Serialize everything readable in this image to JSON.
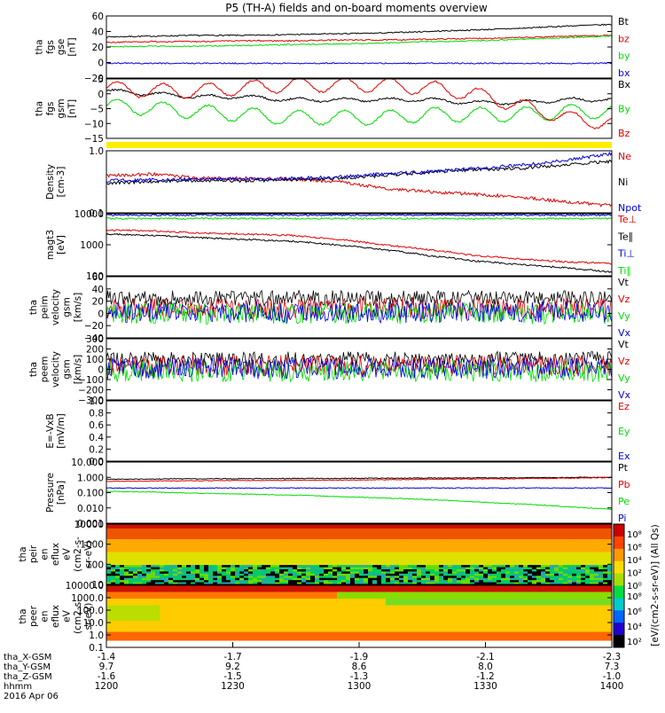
{
  "colors": {
    "black": "#000000",
    "red": "#e00000",
    "green": "#00dd00",
    "blue": "#0000e0",
    "yellow": "#ffee00"
  },
  "chart_data": {
    "type": "line",
    "title": "P5 (TH-A) fields and on-board moments overview",
    "xaxis": {
      "rows": [
        {
          "label": "tha_X-GSM",
          "ticks": [
            "-1.4",
            "-1.7",
            "-1.9",
            "-2.1",
            "-2.3"
          ]
        },
        {
          "label": "tha_Y-GSM",
          "ticks": [
            "9.7",
            "9.2",
            "8.6",
            "8.0",
            "7.3"
          ]
        },
        {
          "label": "tha_Z-GSM",
          "ticks": [
            "-1.6",
            "-1.5",
            "-1.3",
            "-1.2",
            "-1.0"
          ]
        },
        {
          "label": "hhmm",
          "ticks": [
            "1200",
            "1230",
            "1300",
            "1330",
            "1400"
          ]
        }
      ],
      "date": "2016 Apr 06"
    },
    "colorbar": {
      "label": "[eV/(cm2-s-sr-eV)] (All Qs)",
      "top_ticks": [
        "10⁸",
        "10⁶",
        "10⁴",
        "10²",
        "10⁰"
      ],
      "bottom_ticks": [
        "10⁸",
        "10⁶",
        "10⁴",
        "10²"
      ]
    },
    "panels": [
      {
        "id": "fgs-gse",
        "ylabel": [
          "tha",
          "fgs",
          "gse",
          "[nT]"
        ],
        "ylim": [
          -20,
          60
        ],
        "yticks": [
          "60",
          "40",
          "20",
          "0",
          "−20"
        ],
        "series": [
          {
            "name": "Bt",
            "color": "black",
            "values": [
              33,
              34,
              35,
              35,
              36,
              37,
              38,
              40,
              42,
              44,
              47,
              49
            ]
          },
          {
            "name": "bz",
            "color": "red",
            "values": [
              26,
              27,
              27,
              28,
              28,
              29,
              29,
              30,
              31,
              32,
              34,
              35
            ]
          },
          {
            "name": "by",
            "color": "green",
            "values": [
              20,
              21,
              21,
              22,
              23,
              24,
              25,
              27,
              28,
              30,
              32,
              34
            ]
          },
          {
            "name": "bx",
            "color": "blue",
            "values": [
              -1,
              -1,
              -1,
              -1,
              -1,
              -1,
              -1,
              -1,
              -1,
              -1,
              -1,
              -1
            ]
          }
        ]
      },
      {
        "id": "fgs-gsm",
        "ylabel": [
          "tha",
          "fgs",
          "gsm",
          "[nT]"
        ],
        "ylim": [
          -15,
          5
        ],
        "yticks": [
          "5",
          "0",
          "−5",
          "−10",
          "−15"
        ],
        "series": [
          {
            "name": "Bx",
            "color": "black",
            "values": [
              1,
              0,
              -1,
              -1,
              -2,
              -2,
              -2,
              -2,
              -3,
              -3,
              -2,
              -2
            ]
          },
          {
            "name": "By",
            "color": "green",
            "values": [
              -4,
              -5,
              -6,
              -7,
              -8,
              -8,
              -8,
              -7,
              -7,
              -7,
              -6,
              -6
            ]
          },
          {
            "name": "Bz",
            "color": "red",
            "values": [
              2,
              1,
              1,
              2,
              3,
              3,
              3,
              2,
              0,
              -4,
              -8,
              -10
            ]
          }
        ]
      },
      {
        "id": "density",
        "ylabel": [
          "Density",
          "[cm-3]"
        ],
        "ylim": [
          0.1,
          1.0
        ],
        "yticks": [
          "1.0",
          "0.1"
        ],
        "series": [
          {
            "name": "Ne",
            "color": "red",
            "values": [
              0.4,
              0.42,
              0.36,
              0.36,
              0.35,
              0.32,
              0.25,
              0.22,
              0.2,
              0.18,
              0.15,
              0.13
            ]
          },
          {
            "name": "Ni",
            "color": "black",
            "values": [
              0.3,
              0.32,
              0.33,
              0.33,
              0.34,
              0.36,
              0.4,
              0.45,
              0.5,
              0.52,
              0.6,
              0.68
            ]
          },
          {
            "name": "Npot",
            "color": "blue",
            "values": [
              0.33,
              0.34,
              0.35,
              0.35,
              0.36,
              0.38,
              0.42,
              0.46,
              0.52,
              0.58,
              0.7,
              0.9
            ]
          }
        ]
      },
      {
        "id": "temperature",
        "ylabel": [
          "magt3",
          "[eV]"
        ],
        "ylim": [
          100,
          10000
        ],
        "yticks": [
          "10000",
          "1000",
          "100"
        ],
        "series": [
          {
            "name": "Te⊥",
            "color": "red",
            "values": [
              3000,
              2800,
              2400,
              2200,
              2000,
              1500,
              1000,
              700,
              450,
              350,
              280,
              250
            ]
          },
          {
            "name": "Te∥",
            "color": "black",
            "values": [
              2200,
              2000,
              1700,
              1500,
              1300,
              1000,
              700,
              450,
              300,
              230,
              180,
              130
            ]
          },
          {
            "name": "Ti⊥",
            "color": "blue",
            "values": [
              9000,
              9000,
              9000,
              9000,
              9000,
              9000,
              9000,
              9000,
              9000,
              9000,
              9000,
              9000
            ]
          },
          {
            "name": "Ti∥",
            "color": "green",
            "values": [
              7000,
              7000,
              7000,
              7000,
              7000,
              7000,
              7000,
              7000,
              7000,
              7000,
              7000,
              7000
            ]
          }
        ]
      },
      {
        "id": "peim-velocity",
        "ylabel": [
          "tha",
          "peim",
          "velocity",
          "gsm",
          "[km/s]"
        ],
        "ylim": [
          -40,
          60
        ],
        "yticks": [
          "60",
          "40",
          "20",
          "0",
          "−20",
          "−40"
        ],
        "series": [
          {
            "name": "Vt",
            "color": "black",
            "values": [
              25,
              25,
              25,
              25,
              25,
              25,
              25,
              25,
              25,
              25,
              25,
              25
            ]
          },
          {
            "name": "Vz",
            "color": "red",
            "values": [
              8,
              8,
              8,
              8,
              8,
              8,
              8,
              8,
              8,
              8,
              8,
              8
            ]
          },
          {
            "name": "Vy",
            "color": "green",
            "values": [
              0,
              0,
              0,
              0,
              0,
              0,
              0,
              0,
              0,
              0,
              0,
              0
            ]
          },
          {
            "name": "Vx",
            "color": "blue",
            "values": [
              2,
              2,
              2,
              2,
              2,
              2,
              2,
              2,
              2,
              2,
              2,
              2
            ]
          }
        ]
      },
      {
        "id": "peem-velocity",
        "ylabel": [
          "tha",
          "peem",
          "velocity",
          "gsm",
          "[km/s]"
        ],
        "ylim": [
          -300,
          300
        ],
        "yticks": [
          "300",
          "200",
          "100",
          "0",
          "−100",
          "−200",
          "−300"
        ],
        "series": [
          {
            "name": "Vt",
            "color": "black",
            "values": [
              100,
              100,
              100,
              100,
              100,
              100,
              100,
              100,
              100,
              100,
              100,
              100
            ]
          },
          {
            "name": "Vz",
            "color": "red",
            "values": [
              40,
              40,
              40,
              40,
              40,
              40,
              40,
              40,
              40,
              40,
              40,
              40
            ]
          },
          {
            "name": "Vy",
            "color": "green",
            "values": [
              -20,
              -20,
              -20,
              -20,
              -20,
              -20,
              -20,
              -20,
              -20,
              -20,
              -20,
              -20
            ]
          },
          {
            "name": "Vx",
            "color": "blue",
            "values": [
              10,
              10,
              10,
              10,
              10,
              10,
              10,
              10,
              10,
              10,
              10,
              10
            ]
          }
        ]
      },
      {
        "id": "efield",
        "ylabel": [
          "E=-VxB",
          "[mV/m]"
        ],
        "ylim": [
          0,
          1
        ],
        "yticks": [
          "1.0",
          "0.8",
          "0.6",
          "0.4",
          "0.2",
          "0.0"
        ],
        "series": [
          {
            "name": "Ez",
            "color": "red",
            "values": []
          },
          {
            "name": "Ey",
            "color": "green",
            "values": []
          },
          {
            "name": "Ex",
            "color": "blue",
            "values": []
          }
        ]
      },
      {
        "id": "pressure",
        "ylabel": [
          "Pressure",
          "[nPa]"
        ],
        "ylim": [
          0.001,
          10
        ],
        "yticks": [
          "10.000",
          "1.000",
          "0.100",
          "0.010",
          "0.001"
        ],
        "series": [
          {
            "name": "Pt",
            "color": "black",
            "values": [
              0.75,
              0.78,
              0.8,
              0.82,
              0.84,
              0.86,
              0.88,
              0.9,
              0.92,
              0.95,
              0.98,
              1.0
            ]
          },
          {
            "name": "Pb",
            "color": "red",
            "values": [
              0.55,
              0.58,
              0.6,
              0.62,
              0.64,
              0.66,
              0.7,
              0.74,
              0.78,
              0.82,
              0.88,
              0.95
            ]
          },
          {
            "name": "Pe",
            "color": "green",
            "values": [
              0.12,
              0.11,
              0.09,
              0.08,
              0.07,
              0.055,
              0.045,
              0.035,
              0.025,
              0.018,
              0.012,
              0.008
            ]
          },
          {
            "name": "Pi",
            "color": "blue",
            "values": [
              0.2,
              0.2,
              0.2,
              0.2,
              0.2,
              0.2,
              0.2,
              0.2,
              0.2,
              0.2,
              0.2,
              0.2
            ]
          }
        ]
      },
      {
        "id": "peir-eflux",
        "type": "heatmap",
        "ylabel": [
          "tha",
          "peir",
          "en",
          "eflux",
          "eV",
          "(cm2-s-",
          "sr-eV)"
        ],
        "yticks": [
          "10000",
          "1000",
          "100",
          "10"
        ]
      },
      {
        "id": "peer-eflux",
        "type": "heatmap",
        "ylabel": [
          "tha",
          "peer",
          "en",
          "eflux",
          "eV",
          "(cm2-s-",
          "sr-eV)"
        ],
        "yticks": [
          "10000.0",
          "1000.0",
          "100.0",
          "10.0",
          "1.0",
          "0.1"
        ]
      }
    ]
  }
}
